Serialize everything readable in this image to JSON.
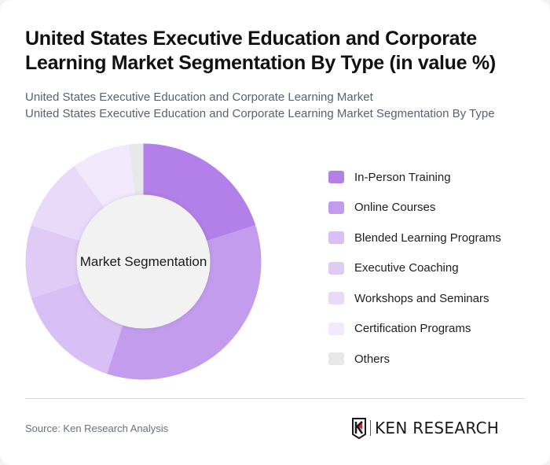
{
  "header": {
    "title": "United States Executive Education and Corporate Learning Market Segmentation By Type (in value %)",
    "subtitle_line1": "United States Executive Education and Corporate Learning Market",
    "subtitle_line2": "United States Executive Education and Corporate Learning Market Segmentation By Type"
  },
  "chart": {
    "center_label": "Market Segmentation"
  },
  "chart_data": {
    "type": "pie",
    "variant": "donut",
    "title": "United States Executive Education and Corporate Learning Market Segmentation By Type (in value %)",
    "center_label": "Market Segmentation",
    "categories": [
      "In-Person Training",
      "Online Courses",
      "Blended Learning Programs",
      "Executive Coaching",
      "Workshops and Seminars",
      "Certification Programs",
      "Others"
    ],
    "values": [
      20,
      35,
      15,
      10,
      10,
      8,
      2
    ],
    "colors": [
      "#b37fe8",
      "#c49cee",
      "#d8bff5",
      "#e0cbf7",
      "#e9dafa",
      "#f2eafc",
      "#e8e8e8"
    ],
    "unit": "%",
    "legend_position": "right",
    "start_angle": "top, clockwise"
  },
  "legend": {
    "items": [
      {
        "label": "In-Person Training",
        "color": "#b37fe8"
      },
      {
        "label": "Online Courses",
        "color": "#c49cee"
      },
      {
        "label": "Blended Learning Programs",
        "color": "#d8bff5"
      },
      {
        "label": "Executive Coaching",
        "color": "#e0cbf7"
      },
      {
        "label": "Workshops and Seminars",
        "color": "#e9dafa"
      },
      {
        "label": "Certification Programs",
        "color": "#f2eafc"
      },
      {
        "label": "Others",
        "color": "#e8e8e8"
      }
    ]
  },
  "footer": {
    "source": "Source: Ken Research Analysis",
    "logo_text": "KEN RESEARCH"
  }
}
